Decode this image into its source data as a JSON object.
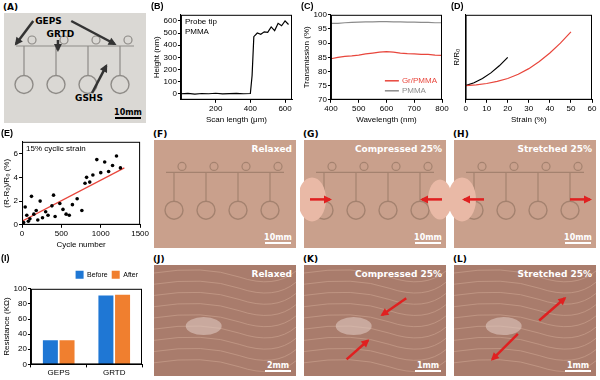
{
  "chart_data": [
    {
      "type": "line",
      "title": "(B)",
      "xlabel": "Scan length (μm)",
      "ylabel": "Height (nm)",
      "annotations": [
        "Probe tip",
        "PMMA"
      ],
      "x": [
        0,
        40,
        80,
        120,
        160,
        200,
        240,
        280,
        320,
        360,
        400,
        410,
        420,
        440,
        460,
        480,
        500,
        520,
        540,
        560,
        580,
        600,
        620
      ],
      "series": [
        {
          "color": "#000000",
          "values": [
            0,
            3,
            -4,
            2,
            0,
            4,
            -2,
            1,
            3,
            0,
            2,
            150,
            470,
            500,
            490,
            510,
            505,
            550,
            520,
            580,
            560,
            600,
            570
          ]
        }
      ],
      "xlim": [
        0,
        640
      ],
      "xticks": [
        200,
        400,
        600
      ],
      "ylim": [
        -50,
        650
      ],
      "yticks": [
        0,
        100,
        200,
        300,
        400,
        500,
        600
      ],
      "grid": false
    },
    {
      "type": "line",
      "title": "(C)",
      "xlabel": "Wavelength (nm)",
      "ylabel": "Transmission (%)",
      "x": [
        400,
        425,
        450,
        475,
        500,
        525,
        550,
        575,
        600,
        625,
        650,
        675,
        700,
        725,
        750,
        775,
        800
      ],
      "series": [
        {
          "name": "Gr/PMMA",
          "color": "#e8463c",
          "values": [
            84.5,
            85,
            85.3,
            85.5,
            85.8,
            86.2,
            86.5,
            86.8,
            87,
            86.8,
            86.5,
            86.3,
            86.2,
            86,
            86,
            85.8,
            85.7
          ]
        },
        {
          "name": "PMMA",
          "color": "#8c8c8c",
          "values": [
            97,
            97,
            97.2,
            97.3,
            97.4,
            97.5,
            97.5,
            97.6,
            97.6,
            97.5,
            97.5,
            97.4,
            97.4,
            97.3,
            97.3,
            97.2,
            97.2
          ]
        }
      ],
      "xlim": [
        400,
        800
      ],
      "xticks": [
        400,
        500,
        600,
        700,
        800
      ],
      "ylim": [
        70,
        100
      ],
      "yticks": [
        70,
        75,
        80,
        85,
        90,
        95,
        100
      ],
      "legend": "lower right",
      "grid": false
    },
    {
      "type": "line",
      "title": "(D)",
      "xlabel": "Strain (%)",
      "ylabel": "R/R₀",
      "series": [
        {
          "color": "#e8463c",
          "x": [
            0,
            5,
            10,
            15,
            20,
            25,
            30,
            35,
            40,
            45,
            50
          ],
          "values": [
            1,
            1.05,
            1.15,
            1.3,
            1.5,
            1.8,
            2.2,
            2.7,
            3.3,
            4,
            4.8
          ]
        },
        {
          "color": "#000000",
          "x": [
            0,
            4,
            8,
            12,
            16,
            20
          ],
          "values": [
            1,
            1.2,
            1.5,
            1.9,
            2.4,
            3
          ]
        }
      ],
      "xlim": [
        0,
        60
      ],
      "xticks": [
        0,
        10,
        20,
        30,
        40,
        50,
        60
      ],
      "ylim": [
        0,
        6
      ],
      "tick_labels": "x",
      "grid": false
    },
    {
      "type": "scatter",
      "title": "(E)",
      "xlabel": "Cycle number",
      "ylabel": "(R-R₀)/R₀ (%)",
      "annotations": [
        "15% cyclic strain"
      ],
      "series": [
        {
          "type": "scatter",
          "color": "#000000",
          "x": [
            20,
            40,
            60,
            80,
            100,
            120,
            150,
            180,
            200,
            230,
            260,
            300,
            330,
            380,
            400,
            420,
            480,
            520,
            560,
            600,
            640,
            700,
            760,
            800,
            820,
            860,
            900,
            950,
            1000,
            1050,
            1100,
            1150,
            1200,
            1250
          ],
          "values": [
            0.2,
            1.5,
            0.8,
            0.3,
            0.5,
            2.4,
            0.9,
            1.2,
            0.4,
            2,
            0.6,
            1.1,
            0.8,
            1.6,
            2.5,
            0.7,
            1.8,
            1.3,
            0.9,
            0.8,
            1.7,
            2.2,
            1.2,
            3.5,
            4,
            3.6,
            4.2,
            5.5,
            4.4,
            5.3,
            4.5,
            5,
            5.8,
            4.8
          ]
        },
        {
          "type": "line",
          "color": "#e8463c",
          "x": [
            0,
            1300
          ],
          "values": [
            0.3,
            4.8
          ]
        }
      ],
      "xlim": [
        0,
        1500
      ],
      "xticks": [
        0,
        500,
        1000,
        1500
      ],
      "ylim": [
        0,
        7
      ],
      "yticks": [
        0,
        2,
        4,
        6
      ],
      "grid": false
    },
    {
      "type": "bar",
      "title": "(I)",
      "ylabel": "Resistance (KΩ)",
      "categories": [
        "GEPS",
        "GRTD"
      ],
      "series": [
        {
          "name": "Before",
          "color": "#1f77d4",
          "values": [
            32,
            91
          ]
        },
        {
          "name": "After",
          "color": "#f07f2f",
          "values": [
            32,
            92
          ]
        }
      ],
      "ylim": [
        0,
        100
      ],
      "yticks": [
        0,
        20,
        40,
        60,
        80,
        100
      ],
      "legend": "top",
      "grid": false
    }
  ],
  "images": [
    {
      "panel": "(A)",
      "labels": [
        "GEPS",
        "GRTD",
        "GSHS"
      ],
      "scale_bar": "10mm"
    },
    {
      "panel": "(F)",
      "labels": [
        "Relaxed"
      ],
      "scale_bar": "10mm"
    },
    {
      "panel": "(G)",
      "labels": [
        "Compressed 25%"
      ],
      "scale_bar": "10mm"
    },
    {
      "panel": "(H)",
      "labels": [
        "Stretched 25%"
      ],
      "scale_bar": "10mm"
    },
    {
      "panel": "(J)",
      "labels": [
        "Relaxed"
      ],
      "scale_bar": "2mm"
    },
    {
      "panel": "(K)",
      "labels": [
        "Compressed 25%"
      ],
      "scale_bar": "1mm"
    },
    {
      "panel": "(L)",
      "labels": [
        "Stretched 25%"
      ],
      "scale_bar": "1mm"
    }
  ]
}
